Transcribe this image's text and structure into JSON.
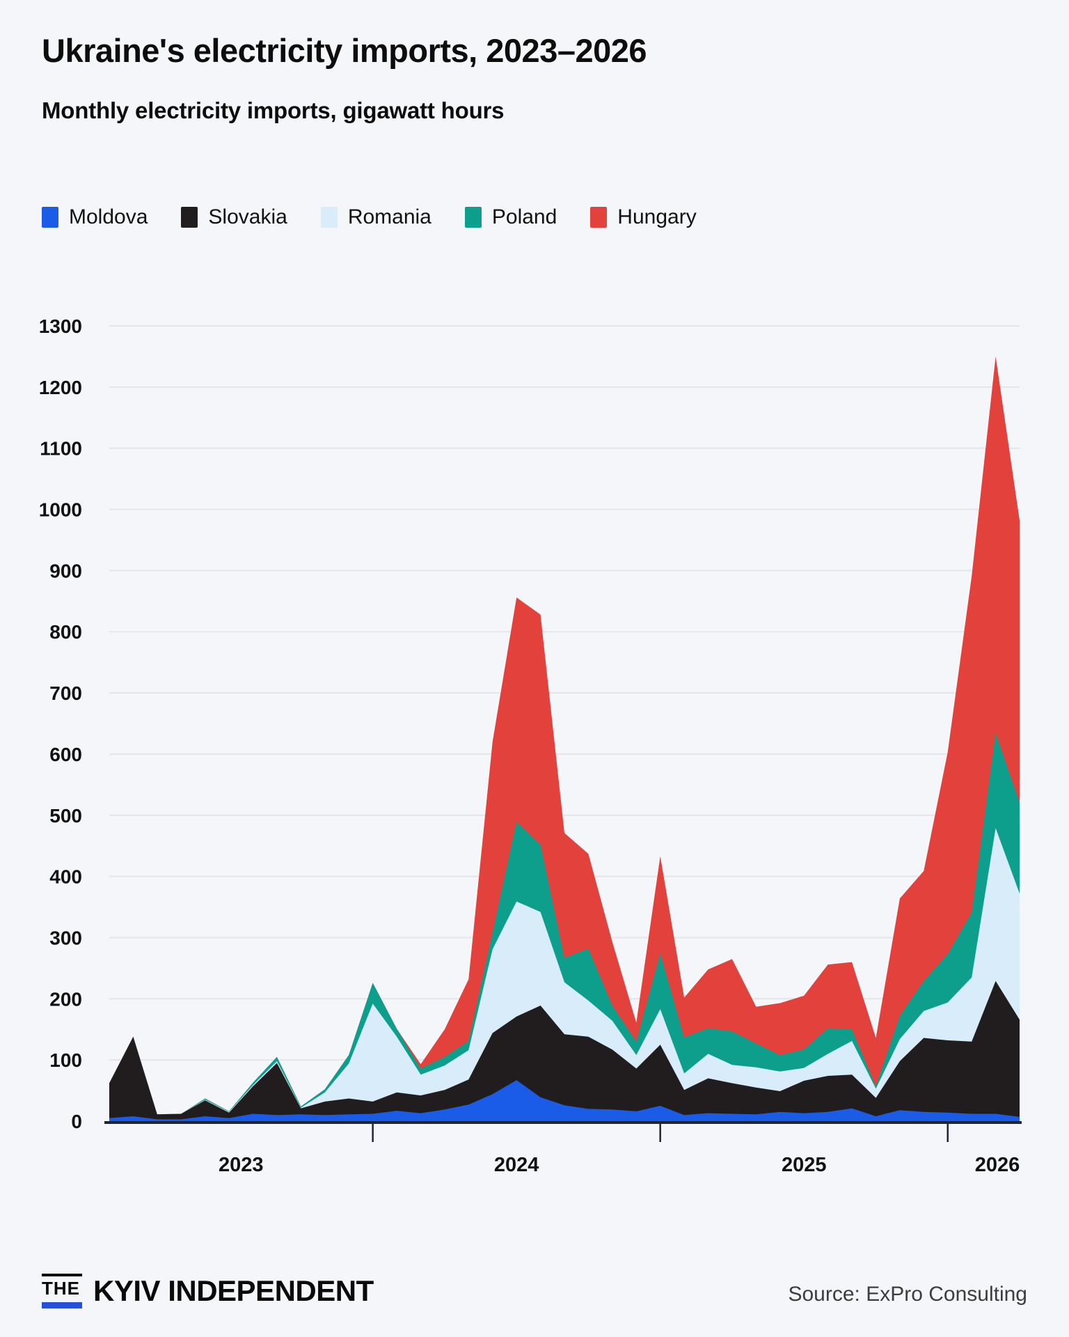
{
  "header": {
    "title": "Ukraine's electricity imports, 2023–2026",
    "subtitle": "Monthly electricity imports, gigawatt hours"
  },
  "legend": [
    {
      "label": "Moldova",
      "color": "#1a5ce8"
    },
    {
      "label": "Slovakia",
      "color": "#211d1e"
    },
    {
      "label": "Romania",
      "color": "#d9ecfa"
    },
    {
      "label": "Poland",
      "color": "#0d9f8c"
    },
    {
      "label": "Hungary",
      "color": "#e3413c"
    }
  ],
  "chart_data": {
    "type": "area",
    "stacked": true,
    "title": "Ukraine's electricity imports, 2023–2026",
    "subtitle": "Monthly electricity imports, gigawatt hours",
    "unit": "gigawatt hours",
    "ylim": [
      0,
      1300
    ],
    "ytick_step": 100,
    "grid": true,
    "legend_position": "top",
    "x": [
      "Feb 2023",
      "Mar 2023",
      "Apr 2023",
      "May 2023",
      "Jun 2023",
      "Jul 2023",
      "Aug 2023",
      "Sep 2023",
      "Oct 2023",
      "Nov 2023",
      "Dec 2023",
      "Jan 2024",
      "Feb 2024",
      "Mar 2024",
      "Apr 2024",
      "May 2024",
      "Jun 2024",
      "Jul 2024",
      "Aug 2024",
      "Sep 2024",
      "Oct 2024",
      "Nov 2024",
      "Dec 2024",
      "Jan 2025",
      "Feb 2025",
      "Mar 2025",
      "Apr 2025",
      "May 2025",
      "Jun 2025",
      "Jul 2025",
      "Aug 2025",
      "Sep 2025",
      "Oct 2025",
      "Nov 2025",
      "Dec 2025",
      "Jan 2026",
      "Feb 2026",
      "Mar 2026",
      "Apr 2026"
    ],
    "x_tick_years": [
      "2023",
      "2024",
      "2025",
      "2026"
    ],
    "series": [
      {
        "name": "Moldova",
        "color": "#1a5ce8",
        "values": [
          5,
          8,
          3,
          3,
          8,
          5,
          12,
          10,
          11,
          10,
          11,
          12,
          17,
          13,
          19,
          27,
          44,
          67,
          39,
          26,
          20,
          19,
          16,
          25,
          10,
          13,
          12,
          11,
          15,
          13,
          15,
          21,
          8,
          18,
          15,
          14,
          12,
          12,
          7
        ]
      },
      {
        "name": "Slovakia",
        "color": "#211d1e",
        "values": [
          57,
          130,
          8,
          9,
          26,
          9,
          45,
          85,
          10,
          22,
          26,
          20,
          30,
          29,
          32,
          41,
          100,
          104,
          150,
          116,
          118,
          98,
          70,
          100,
          41,
          57,
          50,
          44,
          34,
          53,
          59,
          55,
          30,
          80,
          121,
          118,
          118,
          217,
          159
        ]
      },
      {
        "name": "Romania",
        "color": "#d9ecfa",
        "values": [
          0,
          0,
          0,
          0,
          1,
          1,
          2,
          3,
          1,
          15,
          57,
          160,
          91,
          34,
          40,
          48,
          137,
          188,
          153,
          85,
          59,
          47,
          22,
          58,
          27,
          40,
          30,
          33,
          32,
          21,
          36,
          55,
          15,
          36,
          44,
          62,
          105,
          250,
          206
        ]
      },
      {
        "name": "Poland",
        "color": "#0d9f8c",
        "values": [
          0,
          0,
          0,
          0,
          2,
          1,
          4,
          7,
          2,
          5,
          14,
          34,
          13,
          10,
          14,
          15,
          27,
          130,
          110,
          40,
          85,
          25,
          22,
          91,
          59,
          42,
          55,
          39,
          27,
          30,
          42,
          19,
          4,
          38,
          49,
          79,
          106,
          155,
          149
        ]
      },
      {
        "name": "Hungary",
        "color": "#e3413c",
        "values": [
          0,
          0,
          0,
          0,
          0,
          0,
          0,
          0,
          0,
          0,
          0,
          0,
          0,
          7,
          45,
          101,
          312,
          367,
          376,
          204,
          155,
          104,
          31,
          159,
          65,
          96,
          118,
          60,
          85,
          88,
          104,
          110,
          79,
          192,
          180,
          330,
          550,
          616,
          461
        ]
      }
    ]
  },
  "axis": {
    "grid_color": "#e3e5e9",
    "baseline_color": "#1c2733",
    "label_color": "#111111"
  },
  "footer": {
    "logo_the": "THE",
    "logo_name": "KYIV INDEPENDENT",
    "logo_underline_color": "#2750d8",
    "source": "Source: ExPro Consulting"
  }
}
